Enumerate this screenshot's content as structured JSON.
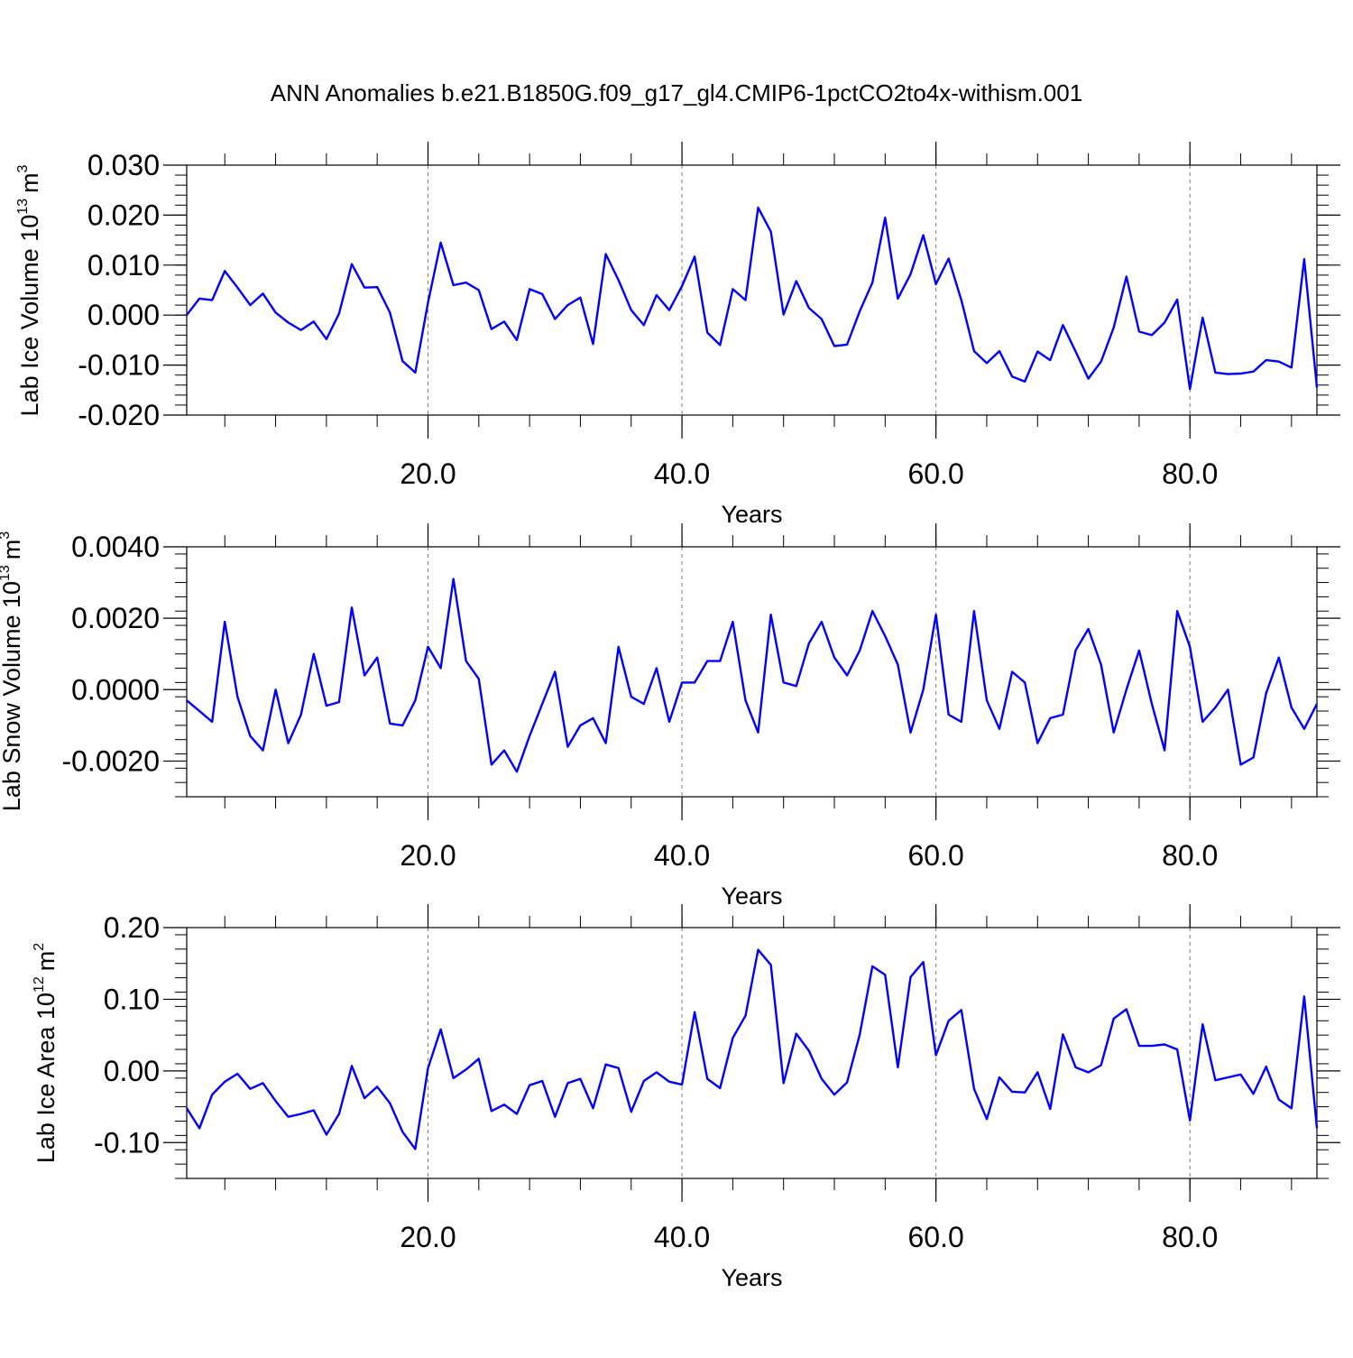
{
  "figure": {
    "title": "ANN Anomalies b.e21.B1850G.f09_g17_gl4.CMIP6-1pctCO2to4x-withism.001"
  },
  "colors": {
    "line": "#0000ff",
    "axis": "#000000",
    "grid": "#808080"
  },
  "chart_data": [
    {
      "type": "line",
      "xlabel": "Years",
      "ylabel_main": "Lab Ice Volume 10",
      "ylabel_exp": "13",
      "ylabel_unit": "m",
      "ylabel_unit_exp": "3",
      "xlim": [
        1,
        90
      ],
      "ylim": [
        -0.02,
        0.03
      ],
      "yticks": [
        -0.02,
        -0.01,
        0.0,
        0.01,
        0.02,
        0.03
      ],
      "ytick_labels": [
        "-0.020",
        "-0.010",
        "0.000",
        "0.010",
        "0.020",
        "0.030"
      ],
      "xticks": [
        20,
        40,
        60,
        80
      ],
      "xtick_labels": [
        "20.0",
        "40.0",
        "60.0",
        "80.0"
      ],
      "ygrid": "dashed vertical lines at major x ticks",
      "x": [
        1,
        2,
        3,
        4,
        5,
        6,
        7,
        8,
        9,
        10,
        11,
        12,
        13,
        14,
        15,
        16,
        17,
        18,
        19,
        20,
        21,
        22,
        23,
        24,
        25,
        26,
        27,
        28,
        29,
        30,
        31,
        32,
        33,
        34,
        35,
        36,
        37,
        38,
        39,
        40,
        41,
        42,
        43,
        44,
        45,
        46,
        47,
        48,
        49,
        50,
        51,
        52,
        53,
        54,
        55,
        56,
        57,
        58,
        59,
        60,
        61,
        62,
        63,
        64,
        65,
        66,
        67,
        68,
        69,
        70,
        71,
        72,
        73,
        74,
        75,
        76,
        77,
        78,
        79,
        80,
        81,
        82,
        83,
        84,
        85,
        86,
        87,
        88,
        89,
        90
      ],
      "values": [
        0.0,
        0.0033,
        0.003,
        0.0088,
        0.0055,
        0.002,
        0.0043,
        0.0005,
        -0.0015,
        -0.003,
        -0.0013,
        -0.0048,
        0.0003,
        0.0102,
        0.0055,
        0.0056,
        0.0005,
        -0.0092,
        -0.0115,
        0.0025,
        0.0145,
        0.006,
        0.0065,
        0.005,
        -0.0028,
        -0.0013,
        -0.005,
        0.0052,
        0.0042,
        -0.0008,
        0.002,
        0.0035,
        -0.0058,
        0.0122,
        0.007,
        0.001,
        -0.002,
        0.004,
        0.001,
        0.0058,
        0.0117,
        -0.0035,
        -0.006,
        0.0052,
        0.003,
        0.0215,
        0.0167,
        0.0001,
        0.0068,
        0.0014,
        -0.0008,
        -0.0062,
        -0.0059,
        0.0008,
        0.0065,
        0.0195,
        0.0033,
        0.0082,
        0.016,
        0.0062,
        0.0113,
        0.003,
        -0.0072,
        -0.0096,
        -0.0072,
        -0.0123,
        -0.0133,
        -0.0073,
        -0.009,
        -0.002,
        -0.0073,
        -0.0127,
        -0.0093,
        -0.0025,
        0.0077,
        -0.0033,
        -0.004,
        -0.0015,
        0.0031,
        -0.0148,
        -0.0005,
        -0.0115,
        -0.0118,
        -0.0117,
        -0.0113,
        -0.009,
        -0.0093,
        -0.0105,
        0.0112,
        -0.0145
      ]
    },
    {
      "type": "line",
      "xlabel": "Years",
      "ylabel_main": "Lab Snow Volume 10",
      "ylabel_exp": "13",
      "ylabel_unit": "m",
      "ylabel_unit_exp": "3",
      "xlim": [
        1,
        90
      ],
      "ylim": [
        -0.003,
        0.004
      ],
      "yticks": [
        -0.002,
        0.0,
        0.002,
        0.004
      ],
      "ytick_labels": [
        "-0.0020",
        "0.0000",
        "0.0020",
        "0.0040"
      ],
      "xticks": [
        20,
        40,
        60,
        80
      ],
      "xtick_labels": [
        "20.0",
        "40.0",
        "60.0",
        "80.0"
      ],
      "x": [
        1,
        2,
        3,
        4,
        5,
        6,
        7,
        8,
        9,
        10,
        11,
        12,
        13,
        14,
        15,
        16,
        17,
        18,
        19,
        20,
        21,
        22,
        23,
        24,
        25,
        26,
        27,
        28,
        29,
        30,
        31,
        32,
        33,
        34,
        35,
        36,
        37,
        38,
        39,
        40,
        41,
        42,
        43,
        44,
        45,
        46,
        47,
        48,
        49,
        50,
        51,
        52,
        53,
        54,
        55,
        56,
        57,
        58,
        59,
        60,
        61,
        62,
        63,
        64,
        65,
        66,
        67,
        68,
        69,
        70,
        71,
        72,
        73,
        74,
        75,
        76,
        77,
        78,
        79,
        80,
        81,
        82,
        83,
        84,
        85,
        86,
        87,
        88,
        89,
        90
      ],
      "values": [
        -0.0003,
        -0.0006,
        -0.0009,
        0.0019,
        -0.0002,
        -0.0013,
        -0.0017,
        0.0,
        -0.0015,
        -0.0007,
        0.001,
        -0.00045,
        -0.00035,
        0.0023,
        0.0004,
        0.0009,
        -0.00095,
        -0.001,
        -0.0003,
        0.0012,
        0.0006,
        0.0031,
        0.0008,
        0.0003,
        -0.0021,
        -0.0017,
        -0.0023,
        -0.0013,
        -0.0004,
        0.0005,
        -0.0016,
        -0.001,
        -0.0008,
        -0.0015,
        0.0012,
        -0.0002,
        -0.0004,
        0.0006,
        -0.0009,
        0.0002,
        0.0002,
        0.0008,
        0.0008,
        0.0019,
        -0.0003,
        -0.0012,
        0.0021,
        0.0002,
        0.0001,
        0.0013,
        0.0019,
        0.0009,
        0.0004,
        0.0011,
        0.0022,
        0.0015,
        0.0007,
        -0.0012,
        0.0,
        0.0021,
        -0.0007,
        -0.0009,
        0.0022,
        -0.0003,
        -0.0011,
        0.0005,
        0.0002,
        -0.0015,
        -0.0008,
        -0.0007,
        0.0011,
        0.0017,
        0.0007,
        -0.0012,
        0.0,
        0.0011,
        -0.0004,
        -0.0017,
        0.0022,
        0.0012,
        -0.0009,
        -0.0005,
        0.0,
        -0.0021,
        -0.0019,
        -0.0001,
        0.0009,
        -0.0005,
        -0.0011,
        -0.0004
      ]
    },
    {
      "type": "line",
      "xlabel": "Years",
      "ylabel_main": "Lab Ice Area 10",
      "ylabel_exp": "12",
      "ylabel_unit": "m",
      "ylabel_unit_exp": "2",
      "xlim": [
        1,
        90
      ],
      "ylim": [
        -0.15,
        0.2
      ],
      "yticks": [
        -0.1,
        0.0,
        0.1,
        0.2
      ],
      "ytick_labels": [
        "-0.10",
        "0.00",
        "0.10",
        "0.20"
      ],
      "xticks": [
        20,
        40,
        60,
        80
      ],
      "xtick_labels": [
        "20.0",
        "40.0",
        "60.0",
        "80.0"
      ],
      "x": [
        1,
        2,
        3,
        4,
        5,
        6,
        7,
        8,
        9,
        10,
        11,
        12,
        13,
        14,
        15,
        16,
        17,
        18,
        19,
        20,
        21,
        22,
        23,
        24,
        25,
        26,
        27,
        28,
        29,
        30,
        31,
        32,
        33,
        34,
        35,
        36,
        37,
        38,
        39,
        40,
        41,
        42,
        43,
        44,
        45,
        46,
        47,
        48,
        49,
        50,
        51,
        52,
        53,
        54,
        55,
        56,
        57,
        58,
        59,
        60,
        61,
        62,
        63,
        64,
        65,
        66,
        67,
        68,
        69,
        70,
        71,
        72,
        73,
        74,
        75,
        76,
        77,
        78,
        79,
        80,
        81,
        82,
        83,
        84,
        85,
        86,
        87,
        88,
        89,
        90
      ],
      "values": [
        -0.052,
        -0.08,
        -0.033,
        -0.015,
        -0.004,
        -0.025,
        -0.017,
        -0.042,
        -0.064,
        -0.06,
        -0.055,
        -0.089,
        -0.06,
        0.007,
        -0.038,
        -0.022,
        -0.045,
        -0.085,
        -0.109,
        0.004,
        0.058,
        -0.01,
        0.002,
        0.017,
        -0.056,
        -0.047,
        -0.06,
        -0.02,
        -0.014,
        -0.064,
        -0.017,
        -0.011,
        -0.052,
        0.009,
        0.004,
        -0.057,
        -0.014,
        -0.002,
        -0.015,
        -0.019,
        0.082,
        -0.011,
        -0.024,
        0.046,
        0.077,
        0.169,
        0.148,
        -0.017,
        0.052,
        0.028,
        -0.011,
        -0.033,
        -0.016,
        0.051,
        0.146,
        0.134,
        0.005,
        0.131,
        0.152,
        0.022,
        0.07,
        0.085,
        -0.025,
        -0.067,
        -0.009,
        -0.029,
        -0.03,
        -0.002,
        -0.053,
        0.051,
        0.005,
        -0.002,
        0.008,
        0.073,
        0.086,
        0.035,
        0.035,
        0.037,
        0.03,
        -0.069,
        0.065,
        -0.013,
        -0.009,
        -0.005,
        -0.032,
        0.006,
        -0.04,
        -0.052,
        0.104,
        -0.08
      ]
    }
  ]
}
